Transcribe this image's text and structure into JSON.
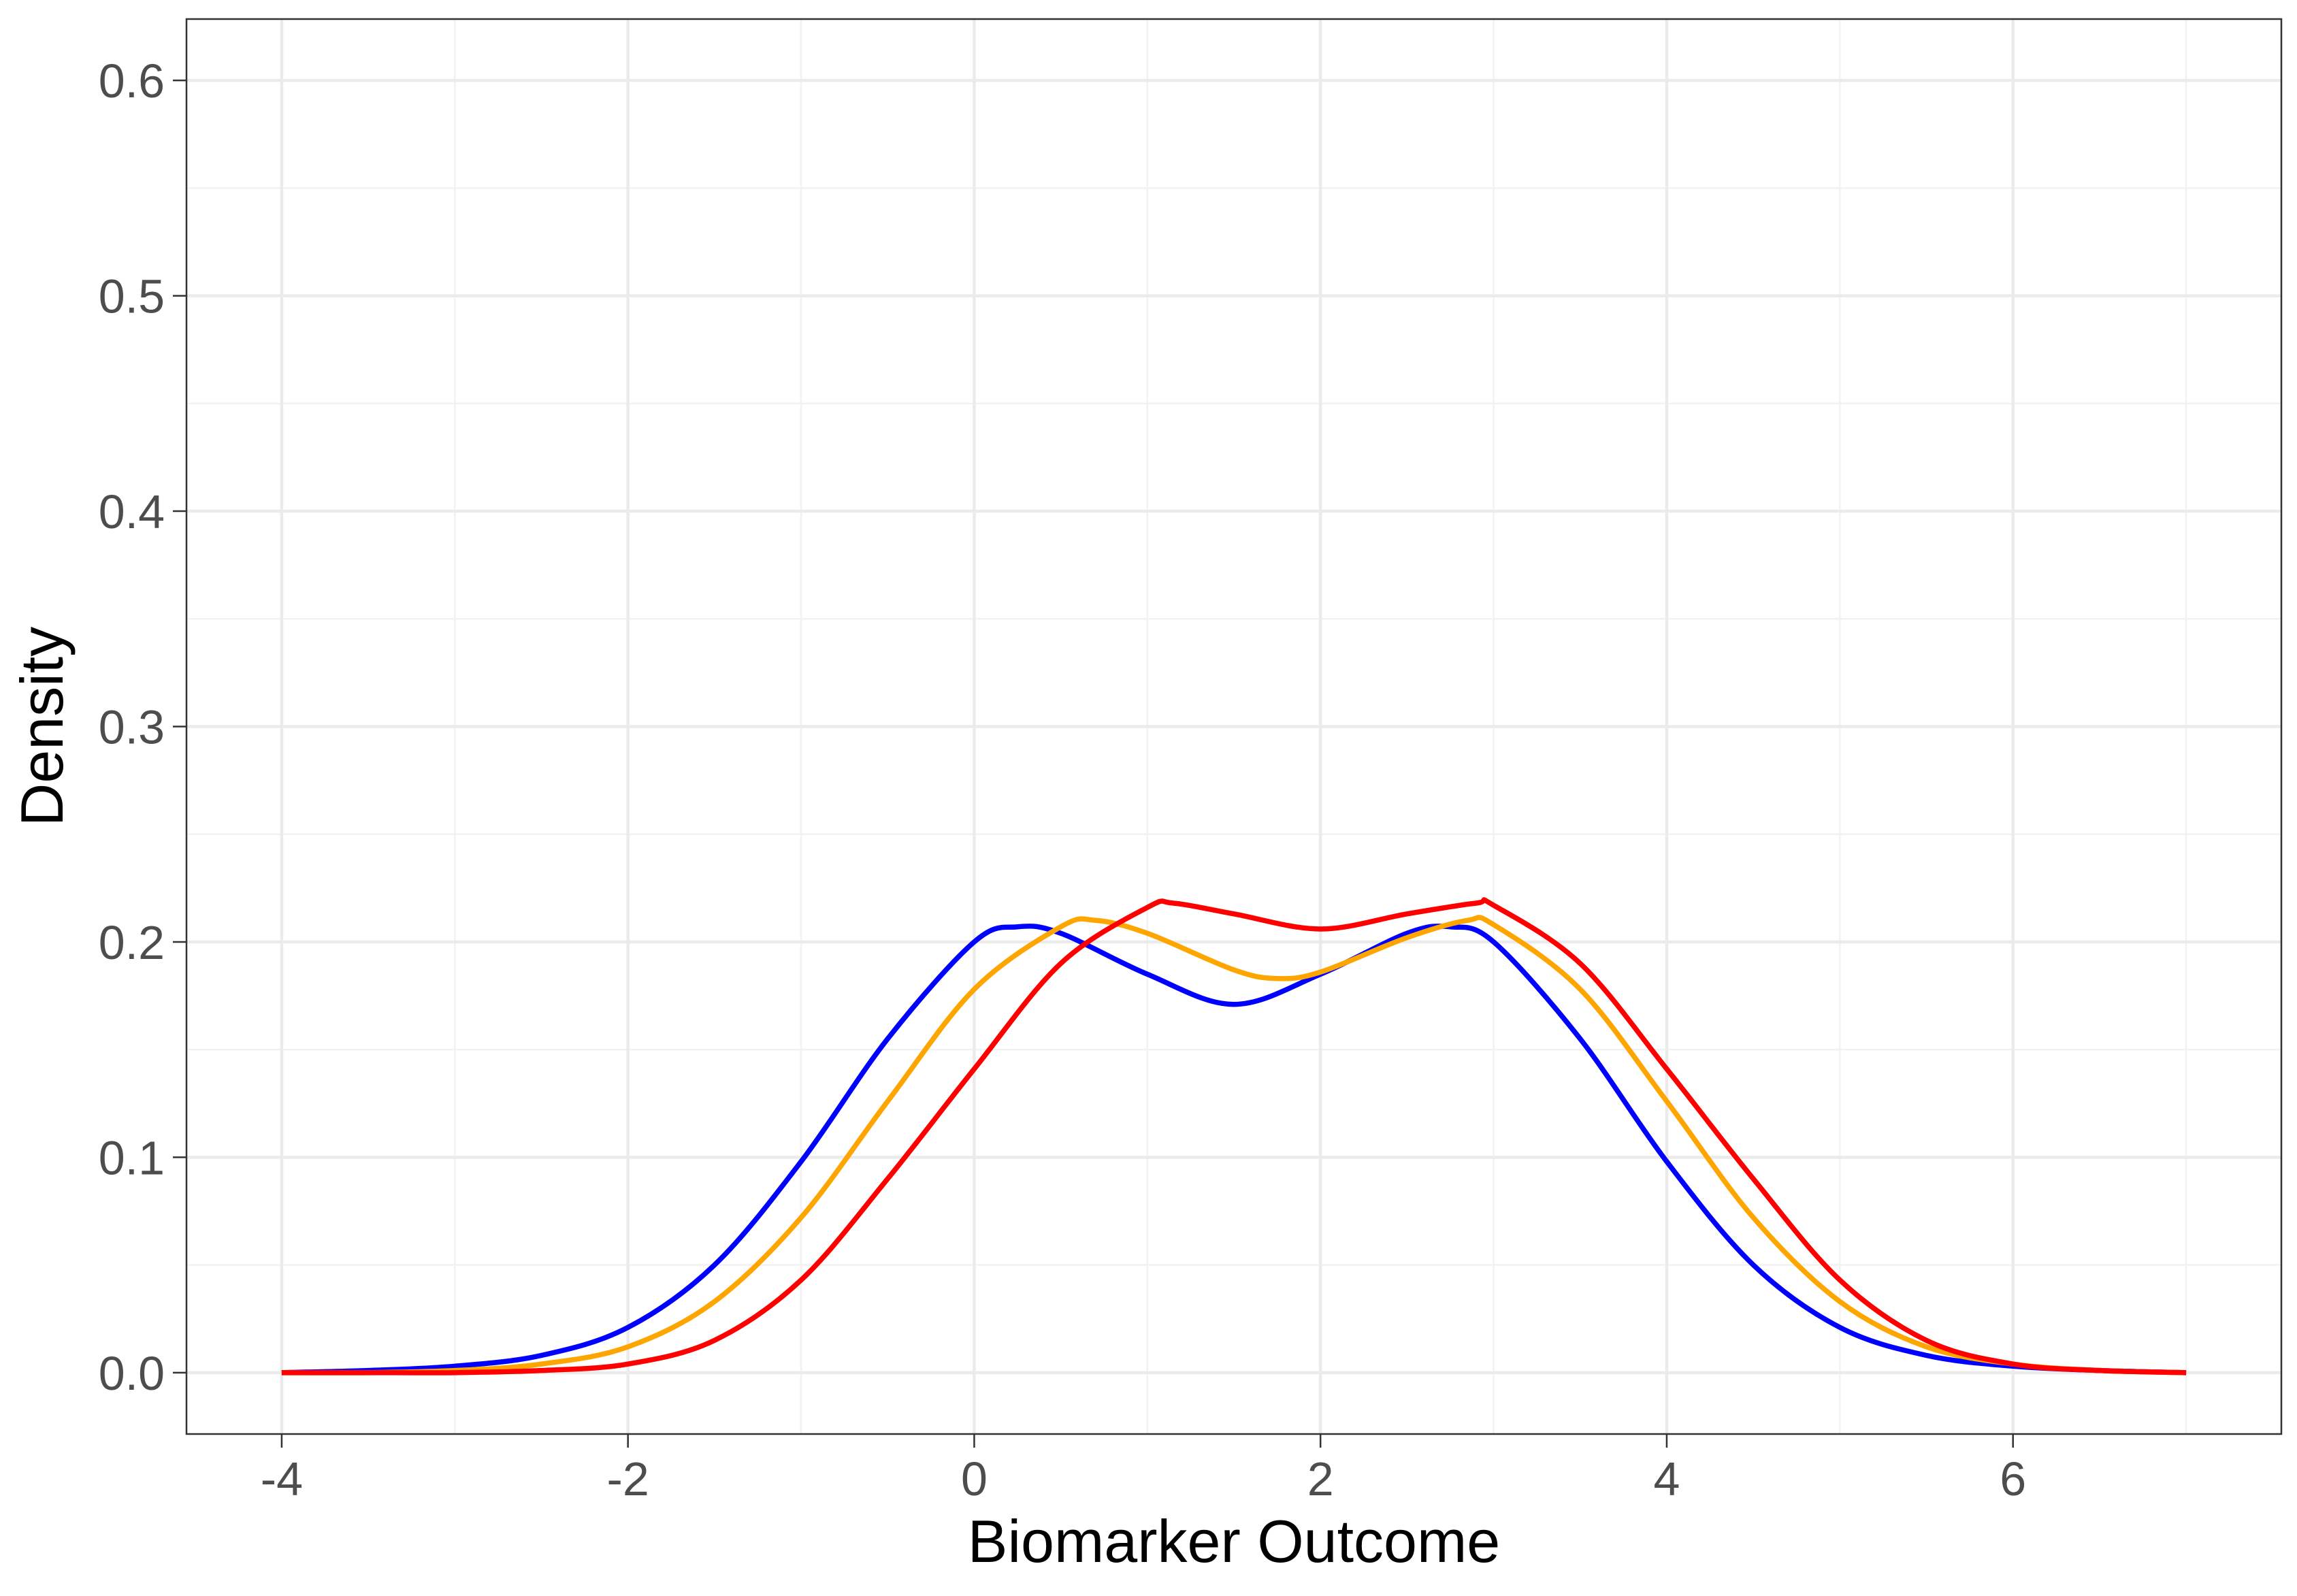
{
  "chart_data": {
    "type": "line",
    "xlabel": "Biomarker Outcome",
    "ylabel": "Density",
    "xlim": [
      -4.55,
      7.55
    ],
    "ylim": [
      -0.0285,
      0.6285
    ],
    "x_ticks": [
      -4,
      -2,
      0,
      2,
      4,
      6
    ],
    "x_tick_labels": [
      "-4",
      "-2",
      "0",
      "2",
      "4",
      "6"
    ],
    "y_ticks": [
      0.0,
      0.1,
      0.2,
      0.3,
      0.4,
      0.5,
      0.6
    ],
    "y_tick_labels": [
      "0.0",
      "0.1",
      "0.2",
      "0.3",
      "0.4",
      "0.5",
      "0.6"
    ],
    "grid": true,
    "legend": "none",
    "series": [
      {
        "color": "#0000FF",
        "x": [
          -4.0,
          -3.5,
          -3.0,
          -2.5,
          -2.0,
          -1.5,
          -1.0,
          -0.5,
          0.0,
          0.25,
          0.5,
          1.0,
          1.5,
          2.0,
          2.5,
          2.75,
          3.0,
          3.5,
          4.0,
          4.5,
          5.0,
          5.5,
          6.0,
          6.5,
          7.0
        ],
        "y": [
          0.0,
          0.001,
          0.003,
          0.008,
          0.021,
          0.05,
          0.098,
          0.155,
          0.2,
          0.207,
          0.204,
          0.185,
          0.171,
          0.185,
          0.204,
          0.207,
          0.2,
          0.155,
          0.098,
          0.05,
          0.021,
          0.008,
          0.003,
          0.001,
          0.0
        ]
      },
      {
        "color": "#FFA500",
        "x": [
          -4.0,
          -3.5,
          -3.0,
          -2.5,
          -2.0,
          -1.5,
          -1.0,
          -0.5,
          0.0,
          0.5,
          0.7,
          1.0,
          1.5,
          1.75,
          2.0,
          2.5,
          2.85,
          3.0,
          3.5,
          4.0,
          4.5,
          5.0,
          5.5,
          6.0,
          6.5,
          7.0
        ],
        "y": [
          0.0,
          0.0,
          0.001,
          0.004,
          0.012,
          0.033,
          0.072,
          0.126,
          0.178,
          0.207,
          0.21,
          0.204,
          0.187,
          0.183,
          0.186,
          0.202,
          0.21,
          0.208,
          0.178,
          0.126,
          0.072,
          0.033,
          0.012,
          0.004,
          0.001,
          0.0
        ]
      },
      {
        "color": "#FF0000",
        "x": [
          -4.0,
          -3.5,
          -3.0,
          -2.5,
          -2.0,
          -1.5,
          -1.0,
          -0.5,
          0.0,
          0.5,
          1.0,
          1.15,
          1.5,
          2.0,
          2.5,
          2.9,
          3.0,
          3.5,
          4.0,
          4.5,
          5.0,
          5.5,
          6.0,
          6.5,
          7.0
        ],
        "y": [
          0.0,
          0.0,
          0.0,
          0.001,
          0.004,
          0.015,
          0.043,
          0.09,
          0.141,
          0.19,
          0.216,
          0.218,
          0.213,
          0.206,
          0.213,
          0.218,
          0.217,
          0.19,
          0.141,
          0.09,
          0.043,
          0.015,
          0.004,
          0.001,
          0.0
        ]
      }
    ]
  }
}
